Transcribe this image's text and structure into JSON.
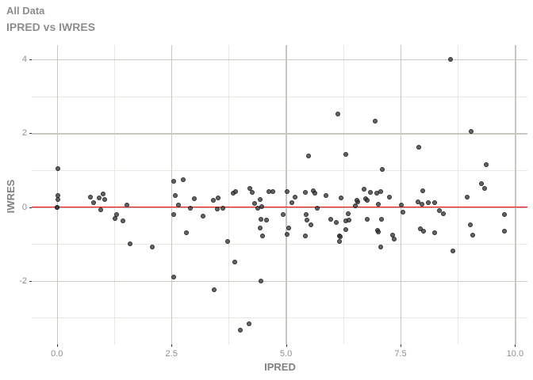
{
  "title": "All Data",
  "subtitle": "IPRED vs IWRES",
  "colors": {
    "title_text": "#8d8d8d",
    "axis_title_text": "#828282",
    "tick_label_text": "#8e8e8e",
    "grid_major": "#c8c8c0",
    "grid_minor": "#e8e8e0",
    "reference_line": "#f30c0c",
    "point_fill": "rgba(55,55,55,0.78)",
    "point_rim": "rgba(10,10,10,0.55)",
    "background": "#ffffff"
  },
  "chart_data": {
    "type": "scatter",
    "title": "All Data",
    "subtitle": "IPRED vs IWRES",
    "xlabel": "IPRED",
    "ylabel": "IWRES",
    "xlim": [
      -0.55,
      10.27
    ],
    "ylim": [
      -3.72,
      4.39
    ],
    "grid": true,
    "legend": false,
    "x_ticks": {
      "values": [
        0,
        2.5,
        5,
        7.5,
        10
      ],
      "labels": [
        "0.0",
        "2.5",
        "5.0",
        "7.5",
        "10.0"
      ]
    },
    "y_ticks": {
      "values": [
        -2,
        0,
        2,
        4
      ],
      "labels": [
        "-2",
        "0",
        "2",
        "4"
      ]
    },
    "x_minor_ticks": [
      1.25,
      3.75,
      6.25,
      8.75
    ],
    "y_minor_ticks": [
      -3,
      -1,
      1,
      3
    ],
    "ref_line": {
      "y": 0
    },
    "points": [
      [
        0.02,
        1.05
      ],
      [
        0.02,
        0.32
      ],
      [
        0.02,
        0.2
      ],
      [
        0.0,
        0.0
      ],
      [
        0.0,
        0.0
      ],
      [
        0.73,
        0.27
      ],
      [
        0.8,
        0.11
      ],
      [
        0.93,
        0.25
      ],
      [
        1.01,
        0.36
      ],
      [
        1.04,
        0.21
      ],
      [
        0.95,
        -0.08
      ],
      [
        1.31,
        -0.21
      ],
      [
        1.27,
        -0.31
      ],
      [
        1.44,
        -0.37
      ],
      [
        1.53,
        0.06
      ],
      [
        1.59,
        -1.0
      ],
      [
        2.08,
        -1.09
      ],
      [
        2.55,
        0.7
      ],
      [
        2.76,
        0.75
      ],
      [
        2.58,
        0.31
      ],
      [
        2.65,
        0.05
      ],
      [
        2.55,
        -0.21
      ],
      [
        2.91,
        -0.03
      ],
      [
        3.0,
        0.22
      ],
      [
        2.83,
        -0.7
      ],
      [
        2.55,
        -1.89
      ],
      [
        3.19,
        -0.25
      ],
      [
        3.41,
        0.18
      ],
      [
        3.52,
        0.25
      ],
      [
        3.5,
        -0.06
      ],
      [
        3.62,
        -0.02
      ],
      [
        3.73,
        -0.93
      ],
      [
        3.84,
        0.37
      ],
      [
        3.9,
        0.43
      ],
      [
        3.44,
        -2.24
      ],
      [
        3.88,
        -1.49
      ],
      [
        4.21,
        0.5
      ],
      [
        4.27,
        0.39
      ],
      [
        4.31,
        0.09
      ],
      [
        4.38,
        -0.03
      ],
      [
        4.44,
        0.2
      ],
      [
        4.47,
        0.02
      ],
      [
        4.46,
        -0.33
      ],
      [
        4.58,
        -0.36
      ],
      [
        4.43,
        -0.57
      ],
      [
        4.49,
        -0.77
      ],
      [
        4.62,
        0.43
      ],
      [
        4.72,
        0.43
      ],
      [
        4.45,
        -2.0
      ],
      [
        4.2,
        -3.16
      ],
      [
        4.01,
        -3.34
      ],
      [
        4.94,
        -0.2
      ],
      [
        5.03,
        0.42
      ],
      [
        5.19,
        0.27
      ],
      [
        5.13,
        0.11
      ],
      [
        5.06,
        -0.57
      ],
      [
        5.03,
        -0.74
      ],
      [
        5.43,
        0.39
      ],
      [
        5.49,
        1.38
      ],
      [
        5.59,
        0.45
      ],
      [
        5.63,
        0.37
      ],
      [
        5.68,
        -0.02
      ],
      [
        5.44,
        -0.2
      ],
      [
        5.45,
        -0.36
      ],
      [
        5.55,
        -0.48
      ],
      [
        5.42,
        -0.77
      ],
      [
        5.88,
        0.32
      ],
      [
        5.97,
        -0.32
      ],
      [
        6.31,
        1.43
      ],
      [
        6.13,
        2.52
      ],
      [
        6.2,
        0.25
      ],
      [
        6.1,
        -0.41
      ],
      [
        6.3,
        -0.38
      ],
      [
        6.38,
        -0.36
      ],
      [
        6.35,
        -0.18
      ],
      [
        6.3,
        -0.61
      ],
      [
        6.17,
        -0.77
      ],
      [
        6.19,
        -0.81
      ],
      [
        6.16,
        -0.94
      ],
      [
        6.51,
        0.04
      ],
      [
        6.57,
        0.14
      ],
      [
        6.54,
        0.18
      ],
      [
        6.7,
        0.48
      ],
      [
        6.84,
        0.41
      ],
      [
        6.73,
        0.23
      ],
      [
        6.77,
        0.18
      ],
      [
        6.95,
        2.34
      ],
      [
        6.98,
        0.38
      ],
      [
        7.06,
        0.43
      ],
      [
        7.01,
        0.07
      ],
      [
        7.1,
        1.02
      ],
      [
        7.25,
        0.27
      ],
      [
        6.77,
        -0.34
      ],
      [
        6.99,
        -0.63
      ],
      [
        7.02,
        -0.68
      ],
      [
        7.08,
        -0.33
      ],
      [
        7.33,
        -0.75
      ],
      [
        7.37,
        -0.86
      ],
      [
        7.06,
        -1.09
      ],
      [
        7.51,
        0.06
      ],
      [
        7.56,
        -0.14
      ],
      [
        7.89,
        1.63
      ],
      [
        7.99,
        0.45
      ],
      [
        7.88,
        0.14
      ],
      [
        7.97,
        0.07
      ],
      [
        8.1,
        0.11
      ],
      [
        8.25,
        0.13
      ],
      [
        8.35,
        -0.09
      ],
      [
        8.43,
        -0.18
      ],
      [
        7.93,
        -0.59
      ],
      [
        8.0,
        -0.66
      ],
      [
        8.25,
        -0.69
      ],
      [
        8.59,
        4.0
      ],
      [
        8.65,
        -1.18
      ],
      [
        8.95,
        0.27
      ],
      [
        9.04,
        2.06
      ],
      [
        9.03,
        -0.48
      ],
      [
        9.08,
        -0.76
      ],
      [
        9.27,
        0.63
      ],
      [
        9.33,
        0.51
      ],
      [
        9.37,
        1.14
      ],
      [
        9.76,
        -0.2
      ],
      [
        9.76,
        -0.66
      ]
    ]
  }
}
